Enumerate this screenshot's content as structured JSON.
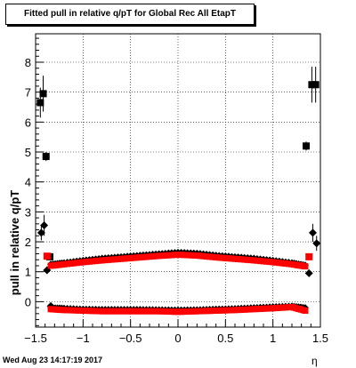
{
  "title": "Fitted pull in relative q/pT for Global Rec All EtapT",
  "footer": "Wed Aug 23 14:17:19 2017",
  "chart_data": {
    "type": "scatter",
    "title": "Fitted pull in relative q/pT for Global Rec All EtapT",
    "xlabel": "η",
    "ylabel": "pull in relative q/pT",
    "xlim": [
      -1.5,
      1.5
    ],
    "ylim": [
      -0.85,
      8.95
    ],
    "xticks": [
      -1.5,
      -1,
      -0.5,
      0,
      0.5,
      1,
      1.5
    ],
    "xtick_labels": [
      "−1.5",
      "−1",
      "−0.5",
      "0",
      "0.5",
      "1",
      "1.5"
    ],
    "yticks": [
      0,
      1,
      2,
      3,
      4,
      5,
      6,
      7,
      8
    ],
    "ytick_labels": [
      "0",
      "1",
      "2",
      "3",
      "4",
      "5",
      "6",
      "7",
      "8"
    ],
    "grid": true,
    "series": [
      {
        "marker": "square",
        "color": "#000000",
        "points": [
          [
            -1.45,
            6.65,
            0.5
          ],
          [
            -1.42,
            6.95,
            0.6
          ],
          [
            -1.39,
            4.85,
            0.15
          ],
          [
            -1.35,
            1.5,
            0.08
          ],
          [
            1.35,
            5.2,
            0.15
          ],
          [
            1.41,
            7.25,
            0.6
          ],
          [
            1.45,
            7.25,
            0.6
          ]
        ]
      },
      {
        "marker": "diamond",
        "color": "#000000",
        "points": [
          [
            -1.44,
            2.3,
            0.25
          ],
          [
            -1.41,
            2.55,
            0.35
          ],
          [
            -1.38,
            1.05,
            0.05
          ],
          [
            -1.34,
            -0.15,
            0.05
          ],
          [
            1.38,
            0.95,
            0.05
          ],
          [
            1.42,
            2.3,
            0.3
          ],
          [
            1.46,
            1.95,
            0.25
          ]
        ]
      },
      {
        "marker": "square",
        "color": "#ff0000",
        "points": [
          [
            -1.38,
            1.52,
            0.03
          ],
          [
            1.38,
            1.5,
            0.03
          ]
        ]
      },
      {
        "marker": "band",
        "color": "#000000",
        "x": [
          -1.34,
          -1.2,
          -1.0,
          -0.8,
          -0.6,
          -0.4,
          -0.2,
          0.0,
          0.2,
          0.4,
          0.6,
          0.8,
          1.0,
          1.2,
          1.34
        ],
        "y": [
          1.25,
          1.3,
          1.38,
          1.45,
          1.5,
          1.55,
          1.6,
          1.65,
          1.62,
          1.55,
          1.5,
          1.45,
          1.38,
          1.3,
          1.22
        ]
      },
      {
        "marker": "band",
        "color": "#ff0000",
        "x": [
          -1.34,
          -1.2,
          -1.0,
          -0.8,
          -0.6,
          -0.4,
          -0.2,
          0.0,
          0.2,
          0.4,
          0.6,
          0.8,
          1.0,
          1.2,
          1.34
        ],
        "y": [
          1.2,
          1.25,
          1.32,
          1.38,
          1.43,
          1.48,
          1.53,
          1.57,
          1.54,
          1.48,
          1.43,
          1.38,
          1.32,
          1.25,
          1.18
        ]
      },
      {
        "marker": "band",
        "color": "#000000",
        "x": [
          -1.34,
          -1.2,
          -1.0,
          -0.8,
          -0.6,
          -0.4,
          -0.2,
          0.0,
          0.2,
          0.4,
          0.6,
          0.8,
          1.0,
          1.2,
          1.34
        ],
        "y": [
          -0.2,
          -0.22,
          -0.25,
          -0.26,
          -0.26,
          -0.26,
          -0.27,
          -0.28,
          -0.27,
          -0.25,
          -0.23,
          -0.2,
          -0.17,
          -0.15,
          -0.2
        ]
      },
      {
        "marker": "band",
        "color": "#ff0000",
        "x": [
          -1.34,
          -1.2,
          -1.0,
          -0.8,
          -0.6,
          -0.4,
          -0.2,
          0.0,
          0.2,
          0.4,
          0.6,
          0.8,
          1.0,
          1.2,
          1.34
        ],
        "y": [
          -0.25,
          -0.28,
          -0.3,
          -0.32,
          -0.32,
          -0.32,
          -0.32,
          -0.34,
          -0.32,
          -0.3,
          -0.28,
          -0.25,
          -0.22,
          -0.18,
          -0.3
        ]
      }
    ]
  }
}
